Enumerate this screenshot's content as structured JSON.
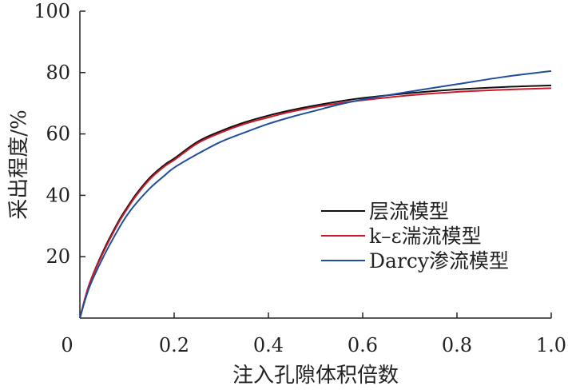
{
  "chart_data": {
    "type": "line",
    "xlabel": "注入孔隙体积倍数",
    "ylabel": "采出程度/%",
    "xlim": [
      0,
      1.0
    ],
    "ylim": [
      0,
      100
    ],
    "x_ticks": [
      0,
      0.2,
      0.4,
      0.6,
      0.8,
      1.0
    ],
    "x_tick_labels": [
      "0",
      "0.2",
      "0.4",
      "0.6",
      "0.8",
      "1.0"
    ],
    "y_ticks": [
      20,
      40,
      60,
      80,
      100
    ],
    "y_tick_labels": [
      "20",
      "40",
      "60",
      "80",
      "100"
    ],
    "grid": false,
    "legend_position": "right",
    "series": [
      {
        "name": "层流模型",
        "color": "#111111",
        "x": [
          0,
          0.02,
          0.05,
          0.08,
          0.1,
          0.12,
          0.15,
          0.18,
          0.2,
          0.25,
          0.3,
          0.35,
          0.4,
          0.45,
          0.5,
          0.55,
          0.6,
          0.7,
          0.8,
          0.9,
          1.0
        ],
        "values": [
          0,
          11,
          22,
          31,
          36,
          40.5,
          46,
          50,
          52,
          57.5,
          61,
          63.8,
          66,
          67.8,
          69.3,
          70.6,
          71.7,
          73.3,
          74.5,
          75.3,
          75.8
        ]
      },
      {
        "name": "k–ε湍流模型",
        "color": "#cc1a2a",
        "x": [
          0,
          0.02,
          0.05,
          0.08,
          0.1,
          0.12,
          0.15,
          0.18,
          0.2,
          0.25,
          0.3,
          0.35,
          0.4,
          0.45,
          0.5,
          0.55,
          0.6,
          0.7,
          0.8,
          0.9,
          1.0
        ],
        "values": [
          0,
          11,
          21.5,
          30.5,
          35.5,
          40,
          45.5,
          49.5,
          51.5,
          57,
          60.5,
          63.3,
          65.4,
          67.3,
          68.8,
          70,
          71,
          72.6,
          73.7,
          74.4,
          74.9
        ]
      },
      {
        "name": "Darcy渗流模型",
        "color": "#1f4e9c",
        "x": [
          0,
          0.02,
          0.05,
          0.08,
          0.1,
          0.12,
          0.15,
          0.18,
          0.2,
          0.25,
          0.3,
          0.35,
          0.4,
          0.45,
          0.5,
          0.55,
          0.6,
          0.7,
          0.8,
          0.9,
          1.0
        ],
        "values": [
          0,
          10,
          20,
          28.5,
          33.5,
          37.5,
          42.5,
          46.5,
          49,
          53.5,
          57.5,
          60.5,
          63.3,
          65.6,
          67.6,
          69.6,
          71.2,
          73.8,
          76.2,
          78.6,
          80.5
        ]
      }
    ]
  }
}
